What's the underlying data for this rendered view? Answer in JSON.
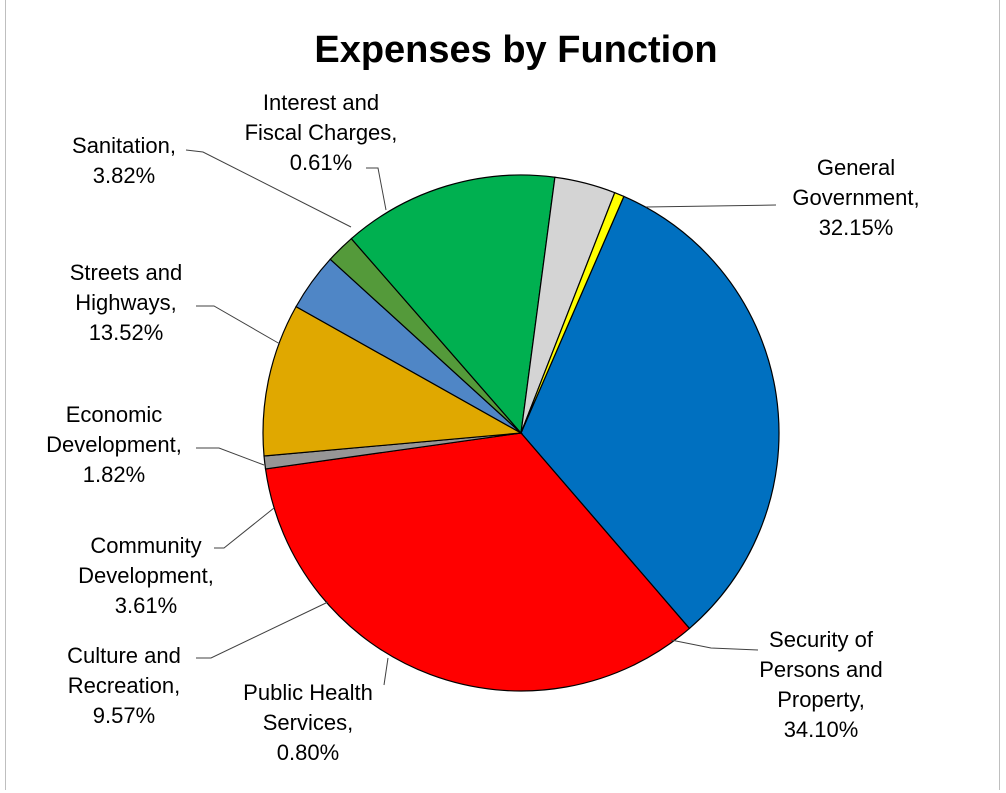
{
  "chart_data": {
    "type": "pie",
    "title": "Expenses by Function",
    "slices": [
      {
        "name": "General Government",
        "value": 32.15,
        "label_lines": [
          "General",
          "Government,",
          "32.15%"
        ],
        "color": "#0070C0"
      },
      {
        "name": "Security of Persons and Property",
        "value": 34.1,
        "label_lines": [
          "Security of",
          "Persons and",
          "Property,",
          "34.10%"
        ],
        "color": "#FF0000"
      },
      {
        "name": "Public Health Services",
        "value": 0.8,
        "label_lines": [
          "Public Health",
          "Services,",
          "0.80%"
        ],
        "color": "#969696"
      },
      {
        "name": "Culture and Recreation",
        "value": 9.57,
        "label_lines": [
          "Culture and",
          "Recreation,",
          "9.57%"
        ],
        "color": "#E0A800"
      },
      {
        "name": "Community Development",
        "value": 3.61,
        "label_lines": [
          "Community",
          "Development,",
          "3.61%"
        ],
        "color": "#4F86C6"
      },
      {
        "name": "Economic Development",
        "value": 1.82,
        "label_lines": [
          "Economic",
          "Development,",
          "1.82%"
        ],
        "color": "#549A3A"
      },
      {
        "name": "Streets and Highways",
        "value": 13.52,
        "label_lines": [
          "Streets and",
          "Highways,",
          "13.52%"
        ],
        "color": "#00B050"
      },
      {
        "name": "Sanitation",
        "value": 3.82,
        "label_lines": [
          "Sanitation,",
          "3.82%"
        ],
        "color": "#D4D4D4"
      },
      {
        "name": "Interest and Fiscal Charges",
        "value": 0.61,
        "label_lines": [
          "Interest and",
          "Fiscal Charges,",
          "0.61%"
        ],
        "color": "#FFFF00"
      }
    ],
    "start_angle_deg": 23.5,
    "direction": "clockwise",
    "legend": "none"
  }
}
